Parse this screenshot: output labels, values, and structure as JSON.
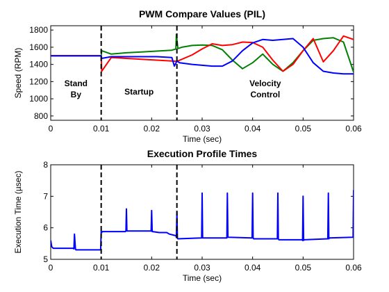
{
  "chart_data": [
    {
      "type": "line",
      "title": "PWM Compare Values (PIL)",
      "xlabel": "Time (sec)",
      "ylabel": "Speed (RPM)",
      "xlim": [
        0,
        0.06
      ],
      "ylim": [
        750,
        1850
      ],
      "xticks": [
        "0",
        "0.01",
        "0.02",
        "0.03",
        "0.04",
        "0.05",
        "0.06"
      ],
      "yticks": [
        "800",
        "1000",
        "1200",
        "1400",
        "1600",
        "1800"
      ],
      "grid": false,
      "colors": {
        "green": "#008000",
        "red": "#ff0000",
        "blue": "#0000ff"
      },
      "vlines": [
        0.01,
        0.025
      ],
      "annotations": [
        {
          "lines": [
            "Stand",
            "By"
          ],
          "x": 0.005,
          "y": 1080
        },
        {
          "lines": [
            "Startup"
          ],
          "x": 0.0175,
          "y": 1050
        },
        {
          "lines": [
            "Velocity",
            "Control"
          ],
          "x": 0.0425,
          "y": 1080
        }
      ],
      "series": [
        {
          "color": "green",
          "x": [
            0,
            0.01,
            0.0101,
            0.012,
            0.015,
            0.018,
            0.021,
            0.024,
            0.0248,
            0.0249,
            0.0252,
            0.026,
            0.028,
            0.03,
            0.032,
            0.034,
            0.036,
            0.038,
            0.04,
            0.042,
            0.044,
            0.046,
            0.048,
            0.05,
            0.052,
            0.054,
            0.056,
            0.058,
            0.06
          ],
          "y": [
            1500,
            1500,
            1560,
            1520,
            1535,
            1545,
            1555,
            1565,
            1580,
            1750,
            1585,
            1600,
            1620,
            1625,
            1620,
            1570,
            1450,
            1350,
            1420,
            1520,
            1400,
            1320,
            1420,
            1560,
            1680,
            1700,
            1710,
            1660,
            1310
          ]
        },
        {
          "color": "red",
          "x": [
            0,
            0.01,
            0.0101,
            0.012,
            0.015,
            0.018,
            0.021,
            0.024,
            0.025,
            0.028,
            0.03,
            0.032,
            0.034,
            0.036,
            0.038,
            0.04,
            0.042,
            0.044,
            0.046,
            0.048,
            0.05,
            0.052,
            0.054,
            0.056,
            0.058,
            0.06
          ],
          "y": [
            1500,
            1500,
            1320,
            1480,
            1470,
            1460,
            1450,
            1440,
            1435,
            1510,
            1580,
            1640,
            1620,
            1630,
            1660,
            1655,
            1600,
            1450,
            1320,
            1400,
            1560,
            1700,
            1430,
            1560,
            1730,
            1690
          ]
        },
        {
          "color": "blue",
          "x": [
            0,
            0.01,
            0.0101,
            0.012,
            0.015,
            0.018,
            0.021,
            0.024,
            0.0245,
            0.025,
            0.0255,
            0.028,
            0.03,
            0.032,
            0.034,
            0.036,
            0.038,
            0.04,
            0.042,
            0.044,
            0.046,
            0.048,
            0.05,
            0.052,
            0.054,
            0.056,
            0.058,
            0.06
          ],
          "y": [
            1500,
            1500,
            1470,
            1490,
            1490,
            1490,
            1490,
            1480,
            1380,
            1440,
            1420,
            1400,
            1390,
            1380,
            1380,
            1440,
            1560,
            1650,
            1690,
            1680,
            1690,
            1700,
            1600,
            1420,
            1320,
            1300,
            1290,
            1290
          ]
        }
      ]
    },
    {
      "type": "line",
      "title": "Execution Profile Times",
      "xlabel": "Time (sec)",
      "ylabel": "Execution Time (µsec)",
      "xlim": [
        0,
        0.06
      ],
      "ylim": [
        5,
        8
      ],
      "xticks": [
        "0",
        "0.01",
        "0.02",
        "0.03",
        "0.04",
        "0.05",
        "0.06"
      ],
      "yticks": [
        "5",
        "6",
        "7",
        "8"
      ],
      "grid": false,
      "colors": {
        "blue": "#0000ff"
      },
      "vlines": [
        0.01,
        0.025
      ],
      "series": [
        {
          "color": "blue",
          "x": [
            0,
            0.0002,
            0.0005,
            0.0045,
            0.0046,
            0.0047,
            0.0049,
            0.005,
            0.0051,
            0.0052,
            0.0053,
            0.0099,
            0.01,
            0.0101,
            0.0102,
            0.0148,
            0.0149,
            0.015,
            0.0151,
            0.0152,
            0.0198,
            0.0199,
            0.02,
            0.0201,
            0.0202,
            0.0215,
            0.023,
            0.0235,
            0.0248,
            0.0249,
            0.025,
            0.0251,
            0.0252,
            0.0298,
            0.0299,
            0.03,
            0.0301,
            0.0302,
            0.0348,
            0.0349,
            0.035,
            0.0351,
            0.0352,
            0.0398,
            0.0399,
            0.04,
            0.0401,
            0.0402,
            0.0448,
            0.0449,
            0.045,
            0.0451,
            0.0452,
            0.0498,
            0.0499,
            0.05,
            0.0501,
            0.0502,
            0.0548,
            0.0549,
            0.055,
            0.0551,
            0.0552,
            0.0598,
            0.0599,
            0.06
          ],
          "y": [
            5.6,
            5.4,
            5.35,
            5.35,
            5.33,
            5.8,
            5.33,
            5.3,
            5.3,
            5.3,
            5.3,
            5.3,
            5.9,
            5.85,
            5.88,
            5.88,
            5.9,
            6.6,
            5.9,
            5.9,
            5.9,
            5.9,
            6.55,
            5.88,
            5.88,
            5.85,
            5.85,
            5.8,
            5.75,
            5.7,
            6.5,
            5.68,
            5.65,
            5.68,
            5.68,
            7.1,
            5.68,
            5.68,
            5.68,
            5.68,
            7.1,
            5.7,
            5.7,
            5.68,
            5.68,
            7.1,
            5.68,
            5.65,
            5.65,
            5.65,
            7.1,
            5.65,
            5.62,
            5.62,
            5.6,
            7.0,
            5.6,
            5.62,
            5.65,
            5.65,
            7.1,
            5.65,
            5.68,
            5.7,
            5.7,
            7.2
          ]
        }
      ]
    }
  ]
}
